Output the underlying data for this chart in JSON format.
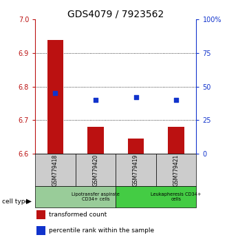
{
  "title": "GDS4079 / 7923562",
  "samples": [
    "GSM779418",
    "GSM779420",
    "GSM779419",
    "GSM779421"
  ],
  "transformed_counts": [
    6.94,
    6.68,
    6.645,
    6.68
  ],
  "percentile_rank_pct": [
    45,
    40,
    42,
    40
  ],
  "ymin": 6.6,
  "ymax": 7.0,
  "yticks": [
    6.6,
    6.7,
    6.8,
    6.9,
    7.0
  ],
  "y2ticks": [
    0,
    25,
    50,
    75,
    100
  ],
  "y2labels": [
    "0",
    "25",
    "50",
    "75",
    "100%"
  ],
  "bar_color": "#bb1111",
  "dot_color": "#1133cc",
  "title_fontsize": 10,
  "tick_fontsize": 7,
  "cell_type_groups": [
    {
      "label": "Lipotransfer aspirate\nCD34+ cells",
      "start": 0,
      "end": 2,
      "color": "#99cc99"
    },
    {
      "label": "Leukapheresis CD34+\ncells",
      "start": 2,
      "end": 4,
      "color": "#44cc44"
    }
  ],
  "cell_type_label": "cell type",
  "legend_items": [
    {
      "color": "#bb1111",
      "label": "transformed count"
    },
    {
      "color": "#1133cc",
      "label": "percentile rank within the sample"
    }
  ]
}
